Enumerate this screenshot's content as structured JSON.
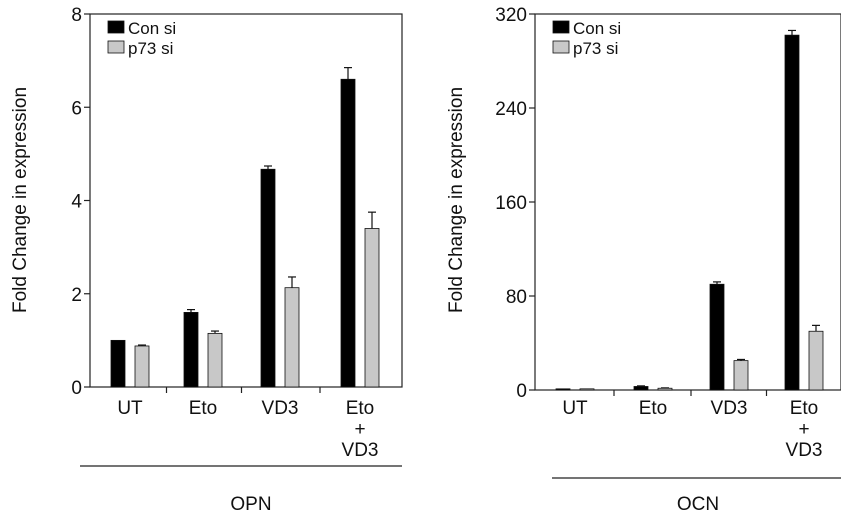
{
  "chart_data": [
    {
      "type": "bar",
      "title": "",
      "group_label": "OPN",
      "ylabel": "Fold Change in expression",
      "xlabel": "",
      "ylim": [
        0,
        8
      ],
      "yticks": [
        0,
        2,
        4,
        6,
        8
      ],
      "categories": [
        [
          "UT"
        ],
        [
          "Eto"
        ],
        [
          "VD3"
        ],
        [
          "Eto",
          "+",
          "VD3"
        ]
      ],
      "series": [
        {
          "name": "Con si",
          "color": "#000000",
          "values": [
            1.0,
            1.6,
            4.67,
            6.6
          ],
          "errors": [
            0.0,
            0.06,
            0.07,
            0.25
          ]
        },
        {
          "name": "p73 si",
          "color": "#c8c8c8",
          "values": [
            0.88,
            1.15,
            2.13,
            3.4
          ],
          "errors": [
            0.02,
            0.05,
            0.23,
            0.35
          ]
        }
      ],
      "legend": "top-left",
      "grid": false
    },
    {
      "type": "bar",
      "title": "",
      "group_label": "OCN",
      "ylabel": "Fold Change in expression",
      "xlabel": "",
      "ylim": [
        0,
        320
      ],
      "yticks": [
        0,
        80,
        160,
        240,
        320
      ],
      "categories": [
        [
          "UT"
        ],
        [
          "Eto"
        ],
        [
          "VD3"
        ],
        [
          "Eto",
          "+",
          "VD3"
        ]
      ],
      "series": [
        {
          "name": "Con si",
          "color": "#000000",
          "values": [
            1,
            3,
            90,
            302
          ],
          "errors": [
            0,
            0.5,
            2,
            4
          ]
        },
        {
          "name": "p73 si",
          "color": "#c8c8c8",
          "values": [
            1,
            1.5,
            25,
            50
          ],
          "errors": [
            0,
            0.3,
            1,
            5
          ]
        }
      ],
      "legend": "top-left",
      "grid": false
    }
  ]
}
